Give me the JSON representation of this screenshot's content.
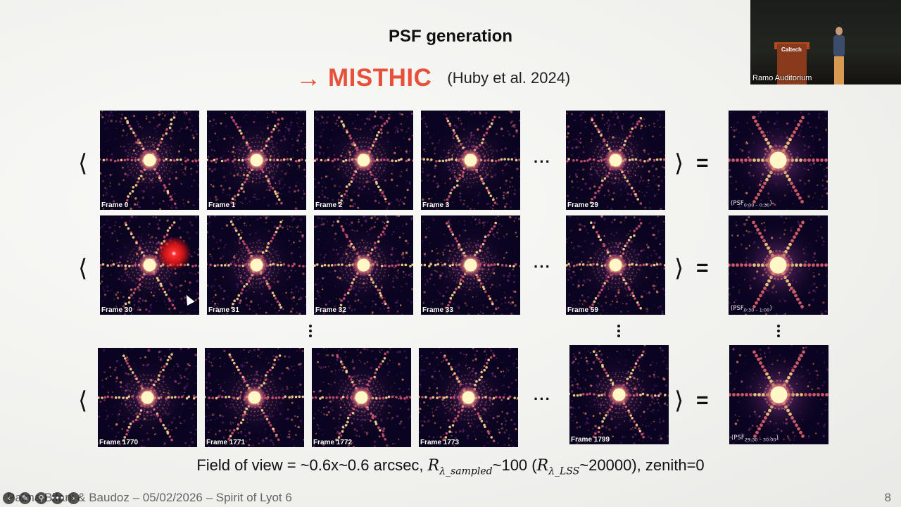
{
  "slide": {
    "title": "PSF generation",
    "arrow": "→",
    "method": "MISTHIC",
    "citation": "(Huby et al. 2024)",
    "fov_line": {
      "prefix": "Field of view = ~0.6x~0.6 arcsec, ",
      "r1": "R",
      "r1_sub": "λ_sampled",
      "mid": "~100 (",
      "r2": "R",
      "r2_sub": "λ_LSS",
      "suffix": "~20000), zenith=0"
    },
    "footer_text": "Palma Bifani & Baudoz – 05/02/2026 – Spirit of Lyot 6",
    "page_number": "8"
  },
  "rows": [
    {
      "frames": [
        "Frame 0",
        "Frame 1",
        "Frame 2",
        "Frame 3"
      ],
      "last_frame": "Frame 29",
      "result_label": "(PSF",
      "result_sub": "0:00 – 0:30",
      "result_close": ")"
    },
    {
      "frames": [
        "Frame 30",
        "Frame 31",
        "Frame 32",
        "Frame 33"
      ],
      "last_frame": "Frame 59",
      "result_label": "(PSF",
      "result_sub": "0:30 – 1:00",
      "result_close": ")"
    },
    {
      "frames": [
        "Frame 1770",
        "Frame 1771",
        "Frame 1772",
        "Frame 1773"
      ],
      "last_frame": "Frame 1799",
      "result_label": "(PSF",
      "result_sub": "29:30 – 30:00",
      "result_close": ")"
    }
  ],
  "symbols": {
    "left_bracket": "⟨",
    "right_bracket": "⟩",
    "equals": "=",
    "ellipsis": "···"
  },
  "camera": {
    "location_label": "Ramo Auditorium",
    "podium_logo": "Caltech"
  },
  "colors": {
    "accent": "#e8503a",
    "psf_background": "#0b0420",
    "psf_core": "#fff3b0"
  },
  "icons": [
    "prev-icon",
    "pointer-pen-icon",
    "zoom-icon",
    "more-icon",
    "next-icon"
  ]
}
